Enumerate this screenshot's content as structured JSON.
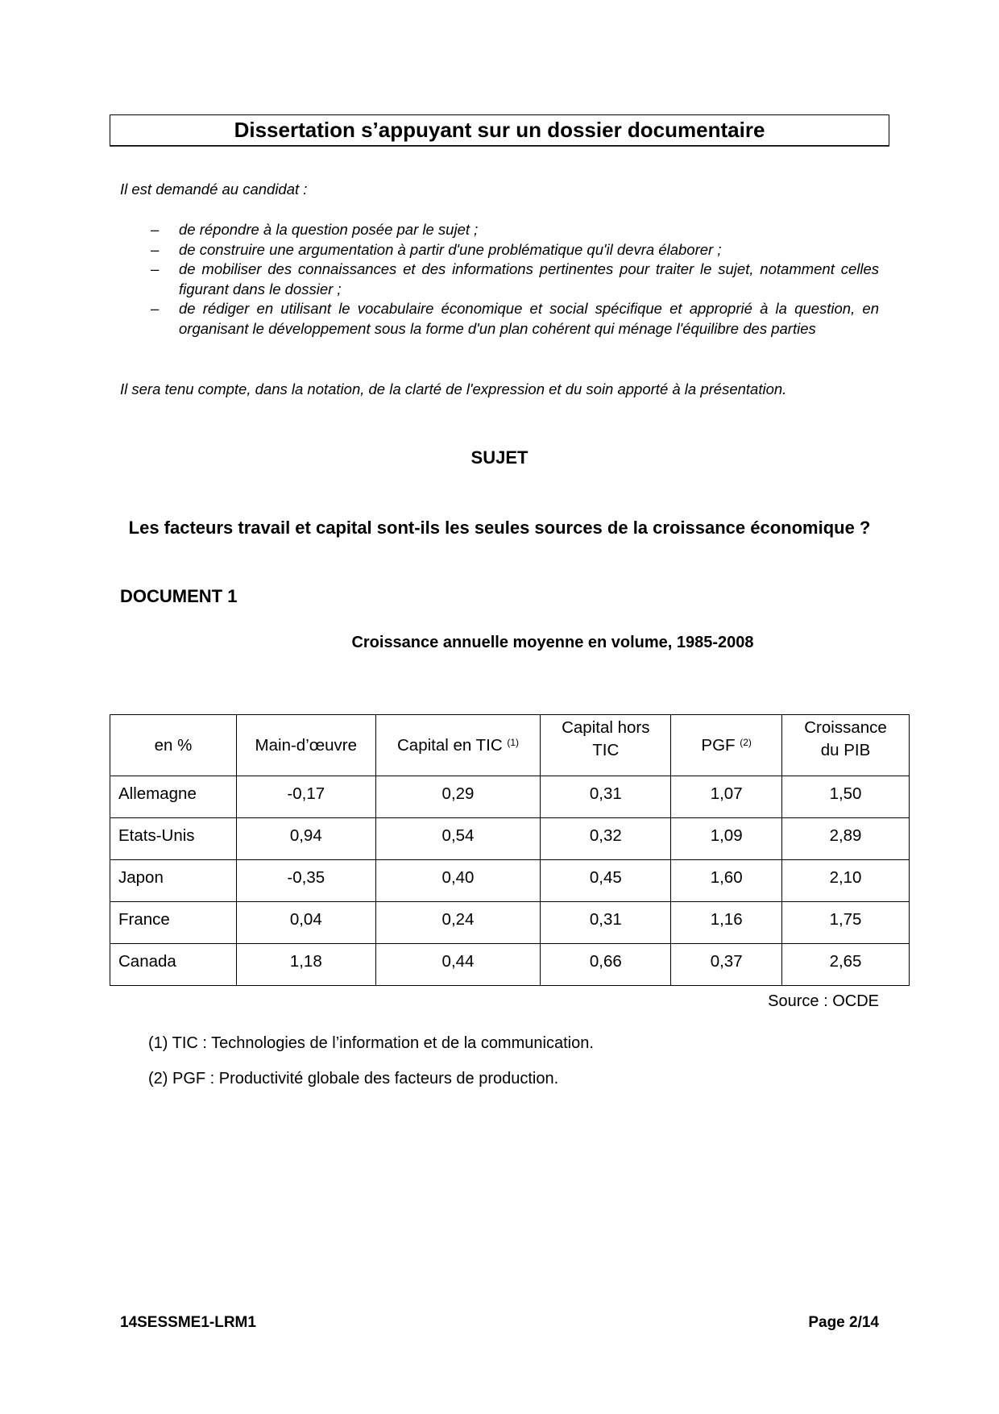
{
  "header": {
    "title": "Dissertation s’appuyant sur un dossier documentaire"
  },
  "instructions": {
    "intro": "Il est demandé au candidat :",
    "items": [
      "de répondre à la question posée par le sujet ;",
      "de construire une argumentation à partir d'une problématique qu'il devra élaborer ;",
      "de mobiliser des connaissances et des informations pertinentes pour traiter le sujet, notamment celles figurant dans le dossier ;",
      "de rédiger en utilisant le vocabulaire économique et social spécifique et approprié à la question, en organisant le développement sous la forme d'un plan cohérent qui ménage l'équilibre des parties"
    ],
    "bullet": "–",
    "closing": "Il sera tenu compte, dans la notation, de la clarté de l'expression et du soin apporté à la présentation."
  },
  "subject": {
    "heading": "SUJET",
    "question": "Les facteurs travail et capital sont-ils les seules sources de la croissance économique ?"
  },
  "document1": {
    "label": "DOCUMENT 1",
    "caption": "Croissance annuelle moyenne en volume, 1985-2008",
    "table": {
      "headers": [
        {
          "text": "en %",
          "sup": ""
        },
        {
          "text": "Main-d’œuvre",
          "sup": ""
        },
        {
          "text": "Capital en TIC",
          "sup": "(1)"
        },
        {
          "text": "Capital hors TIC",
          "sup": ""
        },
        {
          "text": "PGF",
          "sup": "(2)"
        },
        {
          "text": "Croissance du PIB",
          "sup": ""
        }
      ],
      "rows": [
        [
          "Allemagne",
          "-0,17",
          "0,29",
          "0,31",
          "1,07",
          "1,50"
        ],
        [
          "Etats-Unis",
          "0,94",
          "0,54",
          "0,32",
          "1,09",
          "2,89"
        ],
        [
          "Japon",
          "-0,35",
          "0,40",
          "0,45",
          "1,60",
          "2,10"
        ],
        [
          "France",
          "0,04",
          "0,24",
          "0,31",
          "1,16",
          "1,75"
        ],
        [
          "Canada",
          "1,18",
          "0,44",
          "0,66",
          "0,37",
          "2,65"
        ]
      ]
    },
    "source": "Source : OCDE",
    "footnotes": [
      "(1) TIC : Technologies de l’information et de la communication.",
      "(2) PGF : Productivité globale des facteurs de production."
    ]
  },
  "footer": {
    "code": "14SESSME1-LRM1",
    "page": "Page 2/14"
  }
}
